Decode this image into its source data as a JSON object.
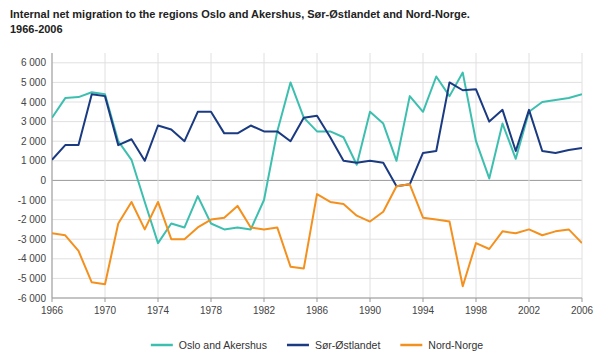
{
  "chart_data": {
    "type": "line",
    "title": "Internal net migration to the regions Oslo and Akershus, Sør-Østlandet and Nord-Norge.\n1966-2006",
    "x": [
      1966,
      1967,
      1968,
      1969,
      1970,
      1971,
      1972,
      1973,
      1974,
      1975,
      1976,
      1977,
      1978,
      1979,
      1980,
      1981,
      1982,
      1983,
      1984,
      1985,
      1986,
      1987,
      1988,
      1989,
      1990,
      1991,
      1992,
      1993,
      1994,
      1995,
      1996,
      1997,
      1998,
      1999,
      2000,
      2001,
      2002,
      2003,
      2004,
      2005,
      2006
    ],
    "series": [
      {
        "name": "Oslo and Akershus",
        "color": "#3DBFB0",
        "values": [
          3200,
          4200,
          4250,
          4500,
          4400,
          2000,
          1050,
          -1100,
          -3200,
          -2200,
          -2400,
          -800,
          -2200,
          -2500,
          -2400,
          -2500,
          -1000,
          2500,
          5000,
          3200,
          2500,
          2500,
          2200,
          800,
          3500,
          2900,
          1000,
          4300,
          3500,
          5300,
          4300,
          5500,
          2000,
          100,
          2900,
          1100,
          3500,
          4000,
          4100,
          4200,
          4400
        ]
      },
      {
        "name": "Sør-Østlandet",
        "color": "#1A3A82",
        "values": [
          1050,
          1800,
          1800,
          4400,
          4300,
          1800,
          2100,
          1000,
          2800,
          2600,
          2000,
          3500,
          3500,
          2400,
          2400,
          2800,
          2500,
          2500,
          2000,
          3200,
          3300,
          2200,
          1000,
          900,
          1000,
          900,
          -300,
          -200,
          1400,
          1500,
          5000,
          4600,
          4650,
          3000,
          3600,
          1500,
          3600,
          1500,
          1400,
          1550,
          1650
        ]
      },
      {
        "name": "Nord-Norge",
        "color": "#F4901E",
        "values": [
          -2700,
          -2800,
          -3600,
          -5200,
          -5300,
          -2200,
          -1100,
          -2500,
          -1100,
          -3000,
          -3000,
          -2400,
          -2000,
          -1900,
          -1300,
          -2400,
          -2500,
          -2400,
          -4400,
          -4500,
          -700,
          -1100,
          -1200,
          -1800,
          -2100,
          -1600,
          -300,
          -200,
          -1900,
          -2000,
          -2100,
          -5400,
          -3200,
          -3500,
          -2600,
          -2700,
          -2500,
          -2800,
          -2600,
          -2500,
          -3200
        ]
      }
    ],
    "xlim": [
      1966,
      2006
    ],
    "xticks": [
      1966,
      1970,
      1974,
      1978,
      1982,
      1986,
      1990,
      1994,
      1998,
      2002,
      2006
    ],
    "ylim": [
      -6000,
      6500
    ],
    "yticks": [
      {
        "value": -6000,
        "label": "-6 000"
      },
      {
        "value": -5000,
        "label": "-5 000"
      },
      {
        "value": -4000,
        "label": "-4 000"
      },
      {
        "value": -3000,
        "label": "-3 000"
      },
      {
        "value": -2000,
        "label": "-2 000"
      },
      {
        "value": -1000,
        "label": "-1 000"
      },
      0,
      {
        "value": 1000,
        "label": "1 000"
      },
      {
        "value": 2000,
        "label": "2 000"
      },
      {
        "value": 3000,
        "label": "3 000"
      },
      {
        "value": 4000,
        "label": "4 000"
      },
      {
        "value": 5000,
        "label": "5 000"
      },
      {
        "value": 6000,
        "label": "6 000"
      }
    ],
    "grid": true,
    "legend": "bottom"
  }
}
